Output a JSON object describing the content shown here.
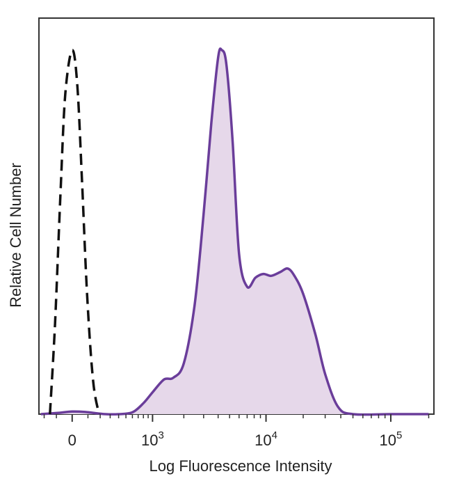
{
  "chart_data": {
    "type": "area",
    "title": "",
    "xlabel": "Log Fluorescence Intensity",
    "ylabel": "Relative Cell Number",
    "x_scale": "biexponential",
    "x_ticks": [
      {
        "value": 0,
        "base": "0",
        "exp": ""
      },
      {
        "value": 1000,
        "base": "10",
        "exp": "3"
      },
      {
        "value": 10000,
        "base": "10",
        "exp": "4"
      },
      {
        "value": 100000,
        "base": "10",
        "exp": "5"
      }
    ],
    "xlim": [
      -250,
      220000
    ],
    "ylim": [
      0,
      100
    ],
    "grid": false,
    "legend": "none",
    "series": [
      {
        "style": "dashed",
        "color": "#111111",
        "fill": "none",
        "points": [
          [
            -150,
            0
          ],
          [
            -110,
            25
          ],
          [
            -70,
            62
          ],
          [
            -40,
            88
          ],
          [
            0,
            100
          ],
          [
            30,
            90
          ],
          [
            60,
            63
          ],
          [
            95,
            32
          ],
          [
            140,
            9
          ],
          [
            190,
            0
          ]
        ]
      },
      {
        "style": "solid",
        "color": "#6a3d9a",
        "fill": "#e6d8ea",
        "points": [
          [
            -230,
            0
          ],
          [
            -100,
            0.3
          ],
          [
            0,
            0.7
          ],
          [
            80,
            0.6
          ],
          [
            150,
            0.3
          ],
          [
            250,
            0
          ],
          [
            400,
            0
          ],
          [
            600,
            0.5
          ],
          [
            800,
            3
          ],
          [
            1000,
            6
          ],
          [
            1300,
            9.5
          ],
          [
            1600,
            10
          ],
          [
            2000,
            14
          ],
          [
            2500,
            30
          ],
          [
            3000,
            55
          ],
          [
            3500,
            80
          ],
          [
            4000,
            98
          ],
          [
            4300,
            100
          ],
          [
            4700,
            96
          ],
          [
            5300,
            75
          ],
          [
            6000,
            44
          ],
          [
            7000,
            35
          ],
          [
            8200,
            37.5
          ],
          [
            9500,
            38.5
          ],
          [
            11000,
            38
          ],
          [
            13000,
            39
          ],
          [
            15000,
            40
          ],
          [
            17000,
            38
          ],
          [
            20000,
            33
          ],
          [
            25000,
            22
          ],
          [
            30000,
            11
          ],
          [
            38000,
            2
          ],
          [
            50000,
            0
          ],
          [
            100000,
            0
          ],
          [
            200000,
            0
          ]
        ]
      }
    ]
  }
}
